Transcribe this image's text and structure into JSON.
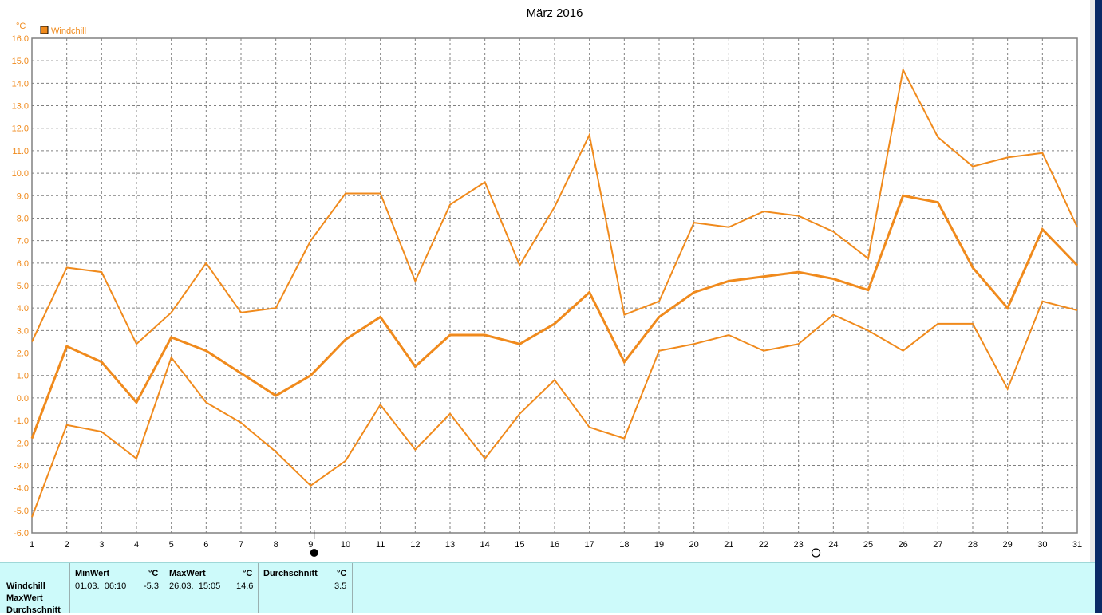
{
  "chart_data": {
    "type": "line",
    "title": "März 2016",
    "ylabel": "°C",
    "xlabel": "",
    "ylim": [
      -6.0,
      16.0
    ],
    "xlim": [
      1,
      31
    ],
    "grid": true,
    "legend_position": "top-left",
    "x": [
      1,
      2,
      3,
      4,
      5,
      6,
      7,
      8,
      9,
      10,
      11,
      12,
      13,
      14,
      15,
      16,
      17,
      18,
      19,
      20,
      21,
      22,
      23,
      24,
      25,
      26,
      27,
      28,
      29,
      30,
      31
    ],
    "y_ticks": [
      "-6.0",
      "-5.0",
      "-4.0",
      "-3.0",
      "-2.0",
      "-1.0",
      "0.0",
      "1.0",
      "2.0",
      "3.0",
      "4.0",
      "5.0",
      "6.0",
      "7.0",
      "8.0",
      "9.0",
      "10.0",
      "11.0",
      "12.0",
      "13.0",
      "14.0",
      "15.0",
      "16.0"
    ],
    "x_ticks": [
      "1",
      "2",
      "3",
      "4",
      "5",
      "6",
      "7",
      "8",
      "9",
      "10",
      "11",
      "12",
      "13",
      "14",
      "15",
      "16",
      "17",
      "18",
      "19",
      "20",
      "21",
      "22",
      "23",
      "24",
      "25",
      "26",
      "27",
      "28",
      "29",
      "30",
      "31"
    ],
    "series": [
      {
        "name": "Windchill",
        "role": "max",
        "values": [
          2.5,
          5.8,
          5.6,
          2.4,
          3.8,
          6.0,
          3.8,
          4.0,
          7.0,
          9.1,
          9.1,
          5.2,
          8.6,
          9.6,
          5.9,
          8.5,
          11.7,
          3.7,
          4.3,
          7.8,
          7.6,
          8.3,
          8.1,
          7.4,
          6.2,
          14.6,
          11.6,
          10.3,
          10.7,
          10.9,
          7.6
        ]
      },
      {
        "role": "avg",
        "values": [
          -1.8,
          2.3,
          1.6,
          -0.2,
          2.7,
          2.1,
          1.1,
          0.1,
          1.0,
          2.6,
          3.6,
          1.4,
          2.8,
          2.8,
          2.4,
          3.3,
          4.7,
          1.6,
          3.6,
          4.7,
          5.2,
          5.4,
          5.6,
          5.3,
          4.8,
          9.0,
          8.7,
          5.8,
          4.0,
          7.5,
          5.9
        ]
      },
      {
        "role": "min",
        "values": [
          -5.3,
          -1.2,
          -1.5,
          -2.7,
          1.8,
          -0.2,
          -1.1,
          -2.4,
          -3.9,
          -2.8,
          -0.3,
          -2.3,
          -0.7,
          -2.7,
          -0.7,
          0.8,
          -1.3,
          -1.8,
          2.1,
          2.4,
          2.8,
          2.1,
          2.4,
          3.7,
          3.0,
          2.1,
          3.3,
          3.3,
          0.4,
          4.3,
          3.9
        ]
      }
    ],
    "moon_phases": [
      {
        "type": "new-moon",
        "x": 9.1
      },
      {
        "type": "full-moon",
        "x": 23.5
      }
    ],
    "colors": {
      "series": "#f08a1c",
      "grid": "#808080",
      "title": "#000000",
      "axis_text": "#f08a1c"
    }
  },
  "stats": {
    "row_labels": [
      "Windchill",
      "MaxWert",
      "Durchschnitt"
    ],
    "min_header": "MinWert",
    "max_header": "MaxWert",
    "avg_header": "Durchschnitt",
    "unit": "°C",
    "min_time": "01.03.  06:10",
    "min_value": "-5.3",
    "max_time": "26.03.  15:05",
    "max_value": "14.6",
    "avg_value": "3.5"
  }
}
